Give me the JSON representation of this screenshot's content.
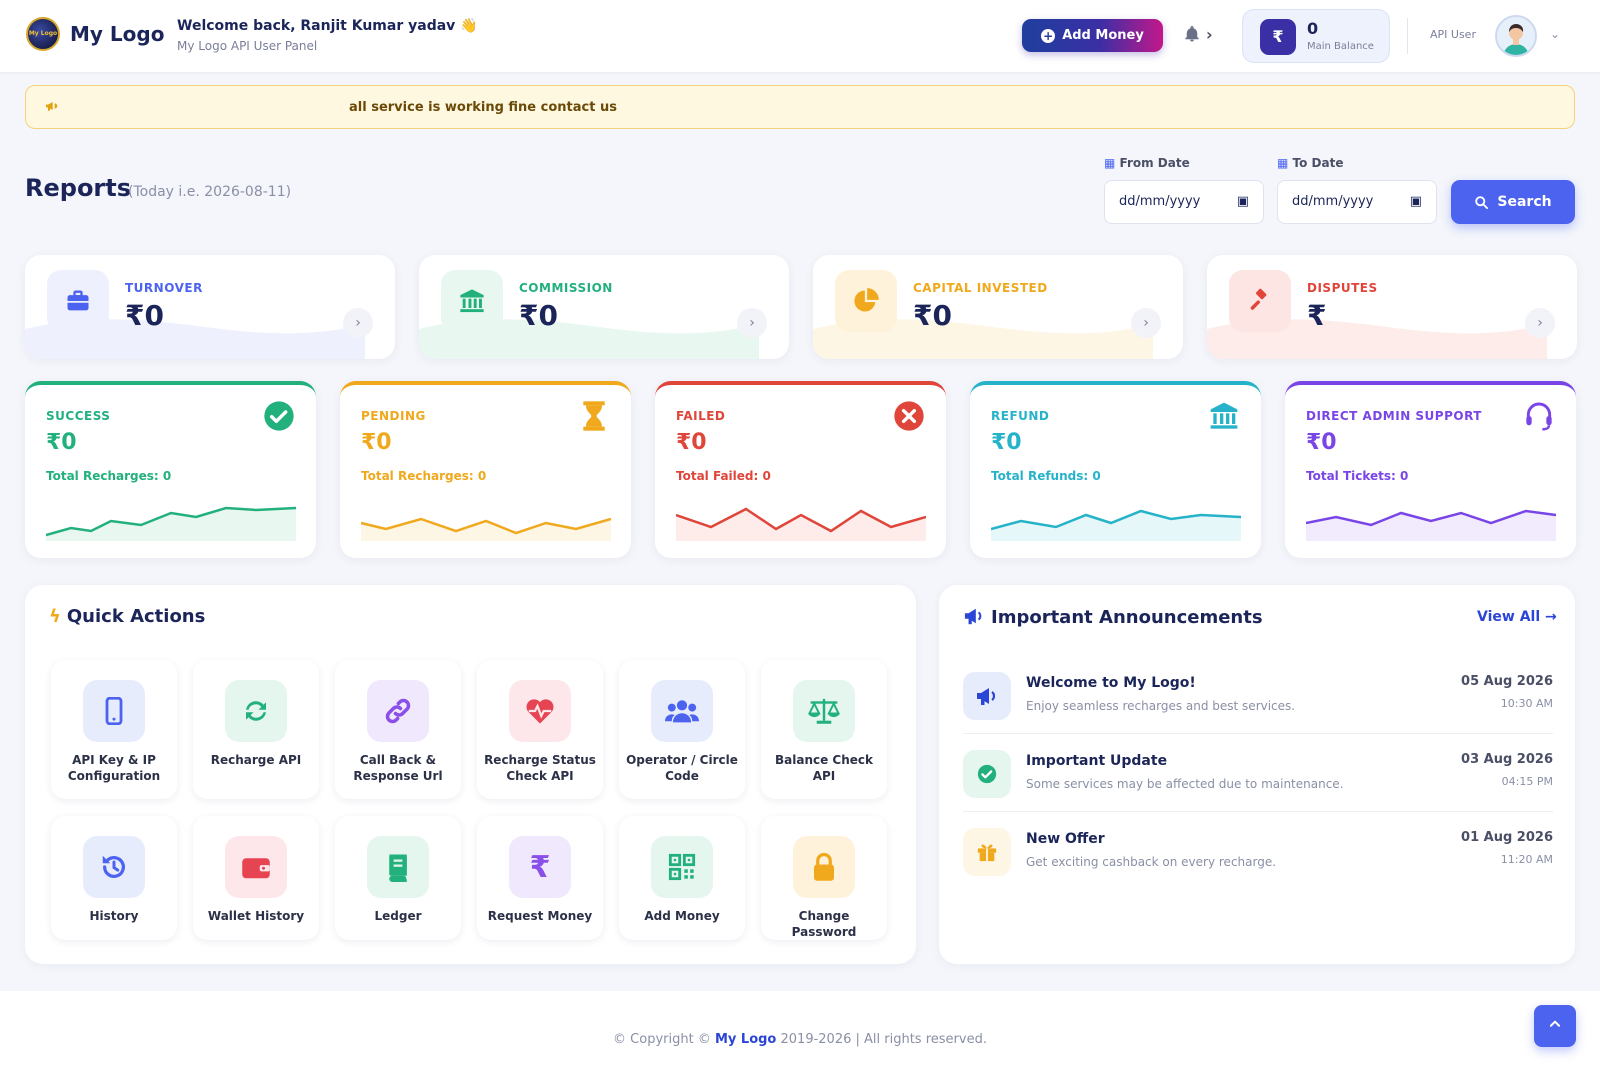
{
  "header": {
    "logo_mark": "My Logo",
    "logo_text": "My Logo",
    "welcome": "Welcome back, Ranjit Kumar yadav 👋",
    "subtitle": "My Logo API User Panel",
    "add_money": "Add Money",
    "balance_value": "0",
    "balance_label": "Main Balance",
    "balance_symbol": "₹",
    "user_role": "API User"
  },
  "notice": "all service is working fine contact us",
  "reports": {
    "title": "Reports",
    "today": "(Today i.e. 2026-08-11)",
    "from_label": "From Date",
    "to_label": "To Date",
    "date_placeholder": "dd/mm/yyyy",
    "search": "Search"
  },
  "summary_cards": [
    {
      "label": "TURNOVER",
      "value": "₹0",
      "color": "#4c63f0"
    },
    {
      "label": "COMMISSION",
      "value": "₹0",
      "color": "#22b07d"
    },
    {
      "label": "CAPITAL INVESTED",
      "value": "₹0",
      "color": "#f0a81c"
    },
    {
      "label": "DISPUTES",
      "value": "₹",
      "color": "#e0453a"
    }
  ],
  "status_cards": [
    {
      "label": "SUCCESS",
      "value": "₹0",
      "total": "Total Recharges: 0",
      "color": "#22b07d",
      "icon": "check-circle-icon"
    },
    {
      "label": "PENDING",
      "value": "₹0",
      "total": "Total Recharges: 0",
      "color": "#f0a81c",
      "icon": "hourglass-icon"
    },
    {
      "label": "FAILED",
      "value": "₹0",
      "total": "Total Failed: 0",
      "color": "#e0453a",
      "icon": "x-circle-icon"
    },
    {
      "label": "REFUND",
      "value": "₹0",
      "total": "Total Refunds: 0",
      "color": "#26b3c9",
      "icon": "bank-icon"
    },
    {
      "label": "DIRECT ADMIN SUPPORT",
      "value": "₹0",
      "total": "Total Tickets: 0",
      "color": "#7a45e6",
      "icon": "headset-icon"
    }
  ],
  "quick_actions": {
    "title": "Quick Actions",
    "items": [
      {
        "label": "API Key & IP Configuration",
        "icon": "mobile-icon"
      },
      {
        "label": "Recharge API",
        "icon": "sync-icon"
      },
      {
        "label": "Call Back & Response Url",
        "icon": "link-icon"
      },
      {
        "label": "Recharge Status Check API",
        "icon": "heartbeat-icon"
      },
      {
        "label": "Operator / Circle Code",
        "icon": "users-icon"
      },
      {
        "label": "Balance Check API",
        "icon": "scale-icon"
      },
      {
        "label": "History",
        "icon": "history-icon"
      },
      {
        "label": "Wallet History",
        "icon": "wallet-icon"
      },
      {
        "label": "Ledger",
        "icon": "book-icon"
      },
      {
        "label": "Request Money",
        "icon": "rupee-icon"
      },
      {
        "label": "Add Money",
        "icon": "qrcode-icon"
      },
      {
        "label": "Change Password",
        "icon": "lock-icon"
      }
    ]
  },
  "announcements": {
    "title": "Important Announcements",
    "view_all": "View All →",
    "items": [
      {
        "title": "Welcome to My Logo!",
        "desc": "Enjoy seamless recharges and best services.",
        "date": "05 Aug 2026",
        "time": "10:30 AM",
        "icon": "megaphone-icon"
      },
      {
        "title": "Important Update",
        "desc": "Some services may be affected due to maintenance.",
        "date": "03 Aug 2026",
        "time": "04:15 PM",
        "icon": "check-circle-icon"
      },
      {
        "title": "New Offer",
        "desc": "Get exciting cashback on every recharge.",
        "date": "01 Aug 2026",
        "time": "11:20 AM",
        "icon": "gift-icon"
      }
    ]
  },
  "footer": {
    "prefix": "© Copyright ©",
    "brand": "My Logo",
    "suffix": "2019-2026 | All rights reserved."
  }
}
